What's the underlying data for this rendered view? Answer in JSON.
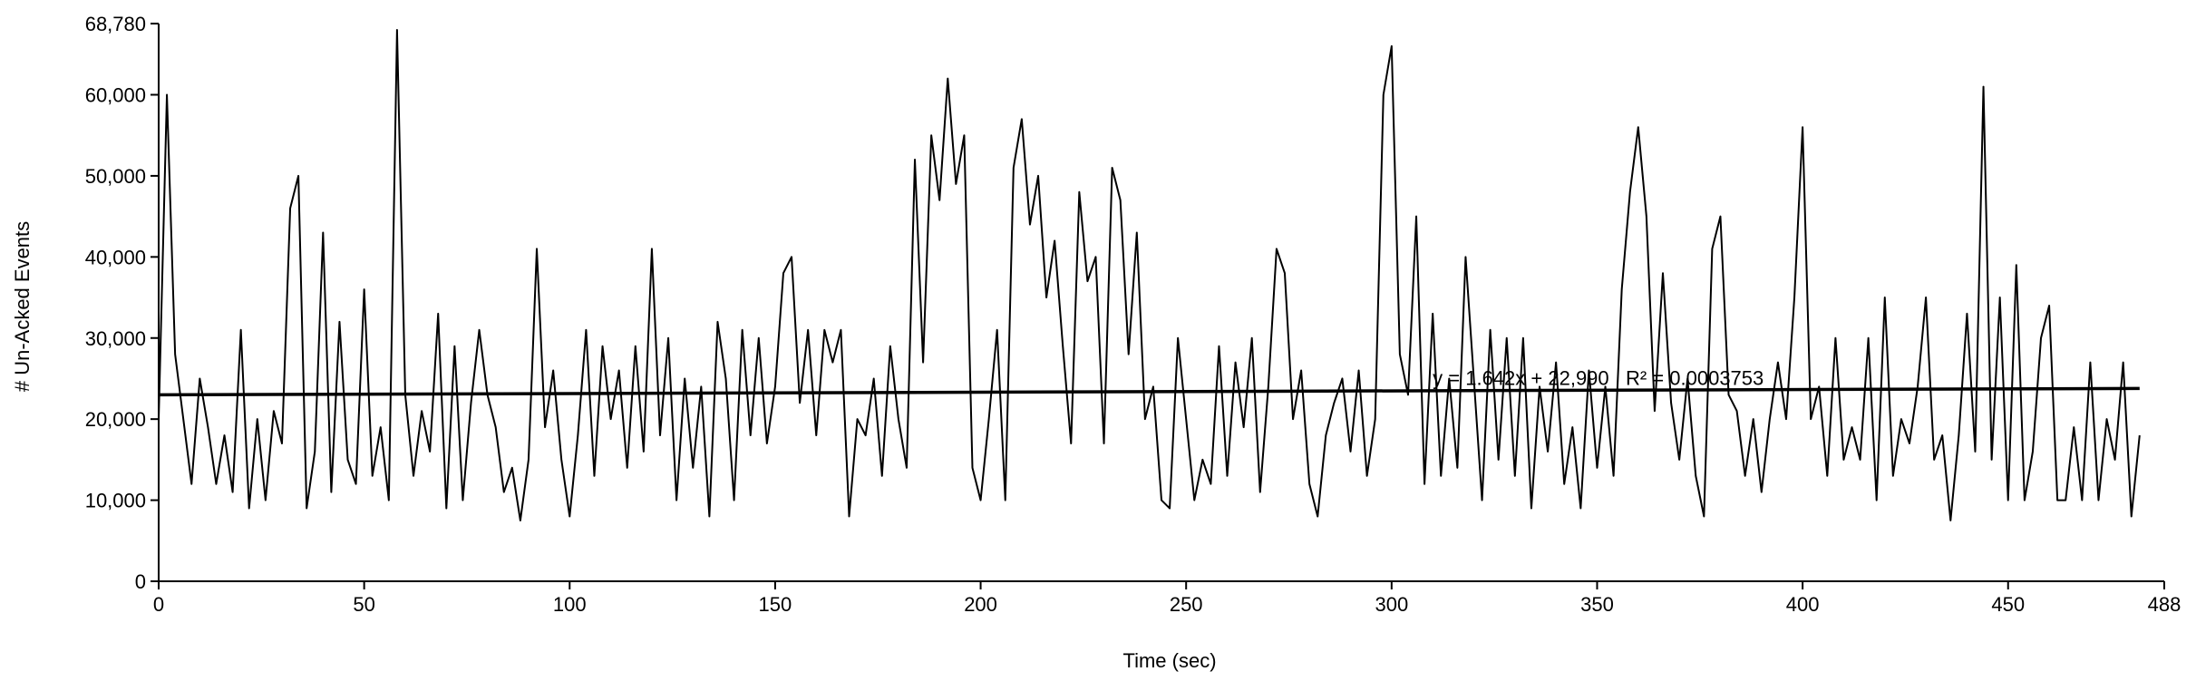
{
  "chart_data": {
    "type": "line",
    "xlabel": "Time (sec)",
    "ylabel": "# Un-Acked Events",
    "annotation": "y = 1.642x + 22,990   R² = 0.0003753",
    "color": "#000000",
    "x": [
      0,
      2,
      4,
      6,
      8,
      10,
      12,
      14,
      16,
      18,
      20,
      22,
      24,
      26,
      28,
      30,
      32,
      34,
      36,
      38,
      40,
      42,
      44,
      46,
      48,
      50,
      52,
      54,
      56,
      58,
      60,
      62,
      64,
      66,
      68,
      70,
      72,
      74,
      76,
      78,
      80,
      82,
      84,
      86,
      88,
      90,
      92,
      94,
      96,
      98,
      100,
      102,
      104,
      106,
      108,
      110,
      112,
      114,
      116,
      118,
      120,
      122,
      124,
      126,
      128,
      130,
      132,
      134,
      136,
      138,
      140,
      142,
      144,
      146,
      148,
      150,
      152,
      154,
      156,
      158,
      160,
      162,
      164,
      166,
      168,
      170,
      172,
      174,
      176,
      178,
      180,
      182,
      184,
      186,
      188,
      190,
      192,
      194,
      196,
      198,
      200,
      202,
      204,
      206,
      208,
      210,
      212,
      214,
      216,
      218,
      220,
      222,
      224,
      226,
      228,
      230,
      232,
      234,
      236,
      238,
      240,
      242,
      244,
      246,
      248,
      250,
      252,
      254,
      256,
      258,
      260,
      262,
      264,
      266,
      268,
      270,
      272,
      274,
      276,
      278,
      280,
      282,
      284,
      286,
      288,
      290,
      292,
      294,
      296,
      298,
      300,
      302,
      304,
      306,
      308,
      310,
      312,
      314,
      316,
      318,
      320,
      322,
      324,
      326,
      328,
      330,
      332,
      334,
      336,
      338,
      340,
      342,
      344,
      346,
      348,
      350,
      352,
      354,
      356,
      358,
      360,
      362,
      364,
      366,
      368,
      370,
      372,
      374,
      376,
      378,
      380,
      382,
      384,
      386,
      388,
      390,
      392,
      394,
      396,
      398,
      400,
      402,
      404,
      406,
      408,
      410,
      412,
      414,
      416,
      418,
      420,
      422,
      424,
      426,
      428,
      430,
      432,
      434,
      436,
      438,
      440,
      442,
      444,
      446,
      448,
      450,
      452,
      454,
      456,
      458,
      460,
      462,
      464,
      466,
      468,
      470,
      472,
      474,
      476,
      478,
      480,
      482
    ],
    "values": [
      20000,
      60000,
      28000,
      20000,
      12000,
      25000,
      19000,
      12000,
      18000,
      11000,
      31000,
      9000,
      20000,
      10000,
      21000,
      17000,
      46000,
      50000,
      9000,
      16000,
      43000,
      11000,
      32000,
      15000,
      12000,
      36000,
      13000,
      19000,
      10000,
      68000,
      23000,
      13000,
      21000,
      16000,
      33000,
      9000,
      29000,
      10000,
      22000,
      31000,
      23000,
      19000,
      11000,
      14000,
      7500,
      15000,
      41000,
      19000,
      26000,
      15000,
      8000,
      18000,
      31000,
      13000,
      29000,
      20000,
      26000,
      14000,
      29000,
      16000,
      41000,
      18000,
      30000,
      10000,
      25000,
      14000,
      24000,
      8000,
      32000,
      25000,
      10000,
      31000,
      18000,
      30000,
      17000,
      24000,
      38000,
      40000,
      22000,
      31000,
      18000,
      31000,
      27000,
      31000,
      8000,
      20000,
      18000,
      25000,
      13000,
      29000,
      20000,
      14000,
      52000,
      27000,
      55000,
      47000,
      62000,
      49000,
      55000,
      14000,
      10000,
      20000,
      31000,
      10000,
      51000,
      57000,
      44000,
      50000,
      35000,
      42000,
      29000,
      17000,
      48000,
      37000,
      40000,
      17000,
      51000,
      47000,
      28000,
      43000,
      20000,
      24000,
      10000,
      9000,
      30000,
      20000,
      10000,
      15000,
      12000,
      29000,
      13000,
      27000,
      19000,
      30000,
      11000,
      24000,
      41000,
      38000,
      20000,
      26000,
      12000,
      8000,
      18000,
      22000,
      25000,
      16000,
      26000,
      13000,
      20000,
      60000,
      66000,
      28000,
      23000,
      45000,
      12000,
      33000,
      13000,
      25000,
      14000,
      40000,
      25000,
      10000,
      31000,
      15000,
      30000,
      13000,
      30000,
      9000,
      24000,
      16000,
      27000,
      12000,
      19000,
      9000,
      26000,
      14000,
      24000,
      13000,
      36000,
      48000,
      56000,
      45000,
      21000,
      38000,
      22000,
      15000,
      25000,
      13000,
      8000,
      41000,
      45000,
      23000,
      21000,
      13000,
      20000,
      11000,
      20000,
      27000,
      20000,
      35000,
      56000,
      20000,
      24000,
      13000,
      30000,
      15000,
      19000,
      15000,
      30000,
      10000,
      35000,
      13000,
      20000,
      17000,
      24000,
      35000,
      15000,
      18000,
      7500,
      18000,
      33000,
      16000,
      61000,
      15000,
      35000,
      10000,
      39000,
      10000,
      16000,
      30000,
      34000,
      10000,
      10000,
      19000,
      10000,
      27000,
      10000,
      20000,
      15000,
      27000,
      8000,
      18000
    ],
    "trendline": {
      "x": [
        0,
        482
      ],
      "values": [
        22990,
        23781
      ]
    },
    "xlim": [
      0,
      488
    ],
    "xticks": [
      0,
      50,
      100,
      150,
      200,
      250,
      300,
      350,
      400,
      450,
      488
    ],
    "ylim": [
      0,
      68780
    ],
    "yticks": [
      0,
      {
        "value": 10000,
        "label": "10,000"
      },
      {
        "value": 20000,
        "label": "20,000"
      },
      {
        "value": 30000,
        "label": "30,000"
      },
      {
        "value": 40000,
        "label": "40,000"
      },
      {
        "value": 50000,
        "label": "50,000"
      },
      {
        "value": 60000,
        "label": "60,000"
      },
      {
        "value": 68780,
        "label": "68,780"
      }
    ],
    "grid": false
  }
}
